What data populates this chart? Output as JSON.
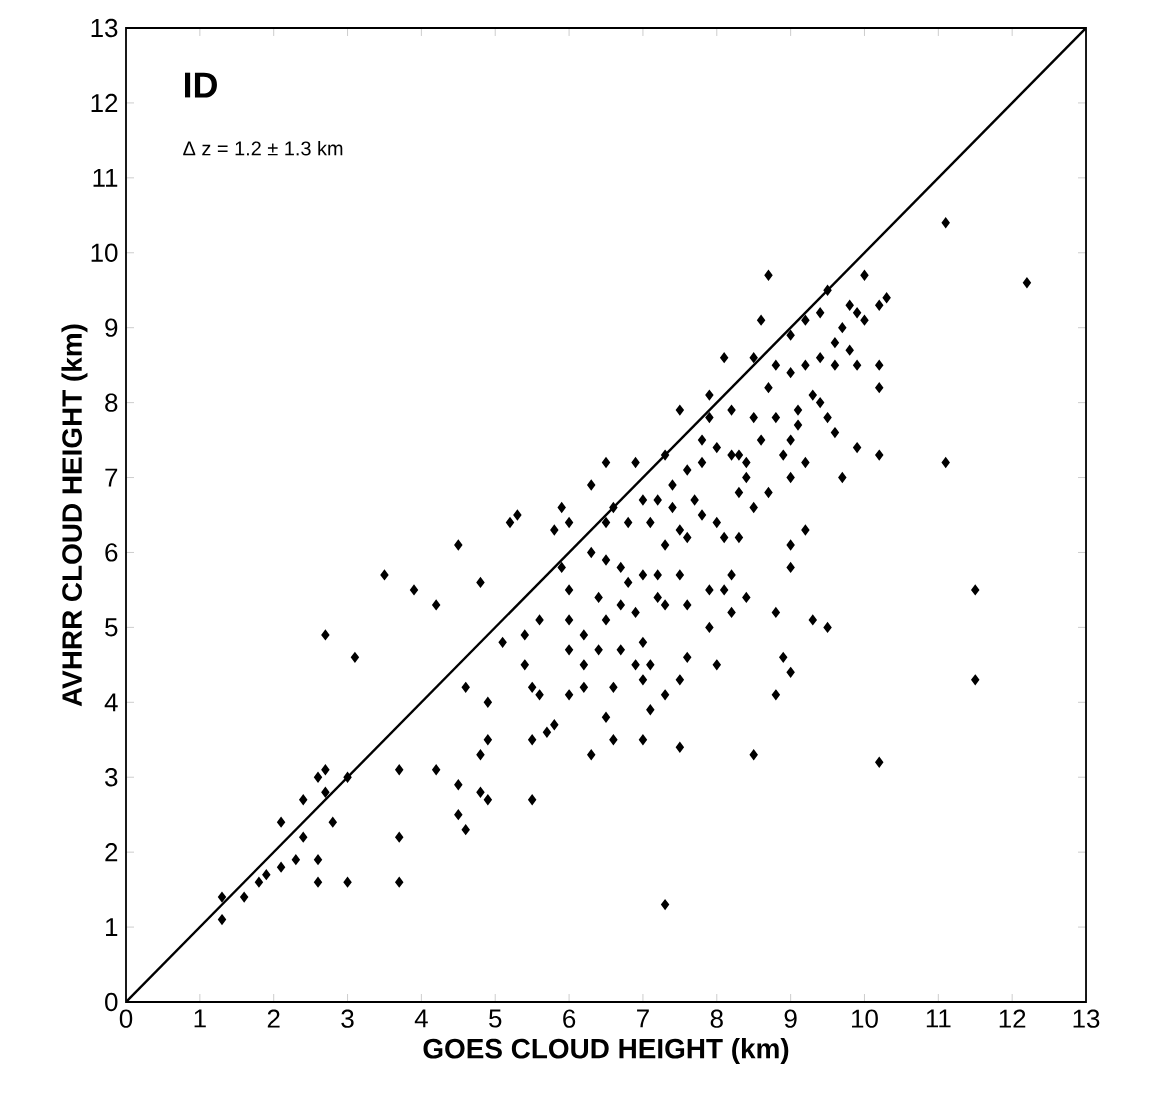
{
  "chart_data": {
    "type": "scatter",
    "xlabel": "GOES CLOUD HEIGHT (km)",
    "ylabel": "AVHRR CLOUD HEIGHT (km)",
    "annotations": [
      "ID",
      "Δ  z = 1.2 ± 1.3 km"
    ],
    "xlim": [
      0,
      13
    ],
    "ylim": [
      0,
      13
    ],
    "xticks": [
      0,
      1,
      2,
      3,
      4,
      5,
      6,
      7,
      8,
      9,
      10,
      11,
      12,
      13
    ],
    "yticks": [
      0,
      1,
      2,
      3,
      4,
      5,
      6,
      7,
      8,
      9,
      10,
      11,
      12,
      13
    ],
    "series": [
      {
        "marker": "diamond",
        "color": "#000000",
        "x": [
          1.3,
          1.3,
          1.6,
          1.8,
          1.9,
          2.1,
          2.1,
          2.3,
          2.4,
          2.4,
          2.6,
          2.6,
          2.6,
          2.7,
          2.7,
          2.7,
          2.8,
          3.0,
          3.0,
          3.1,
          3.5,
          3.7,
          3.7,
          3.7,
          3.9,
          4.2,
          4.2,
          4.5,
          4.5,
          4.5,
          4.6,
          4.6,
          4.8,
          4.8,
          4.8,
          4.9,
          4.9,
          4.9,
          5.1,
          5.2,
          5.3,
          5.4,
          5.4,
          5.5,
          5.5,
          5.5,
          5.6,
          5.6,
          5.7,
          5.8,
          5.8,
          5.9,
          5.9,
          6.0,
          6.0,
          6.0,
          6.0,
          6.0,
          6.2,
          6.2,
          6.2,
          6.3,
          6.3,
          6.3,
          6.4,
          6.4,
          6.5,
          6.5,
          6.5,
          6.5,
          6.5,
          6.6,
          6.6,
          6.6,
          6.7,
          6.7,
          6.7,
          6.8,
          6.8,
          6.9,
          6.9,
          6.9,
          7.0,
          7.0,
          7.0,
          7.0,
          7.0,
          7.1,
          7.1,
          7.1,
          7.2,
          7.2,
          7.2,
          7.3,
          7.3,
          7.3,
          7.3,
          7.3,
          7.4,
          7.4,
          7.5,
          7.5,
          7.5,
          7.5,
          7.5,
          7.6,
          7.6,
          7.6,
          7.6,
          7.7,
          7.8,
          7.8,
          7.8,
          7.9,
          7.9,
          7.9,
          7.9,
          8.0,
          8.0,
          8.0,
          8.1,
          8.1,
          8.1,
          8.2,
          8.2,
          8.2,
          8.2,
          8.3,
          8.3,
          8.3,
          8.4,
          8.4,
          8.4,
          8.5,
          8.5,
          8.5,
          8.5,
          8.6,
          8.6,
          8.7,
          8.7,
          8.7,
          8.8,
          8.8,
          8.8,
          8.8,
          8.9,
          8.9,
          9.0,
          9.0,
          9.0,
          9.0,
          9.0,
          9.0,
          9.0,
          9.1,
          9.1,
          9.2,
          9.2,
          9.2,
          9.2,
          9.3,
          9.3,
          9.4,
          9.4,
          9.4,
          9.5,
          9.5,
          9.5,
          9.6,
          9.6,
          9.6,
          9.7,
          9.7,
          9.8,
          9.8,
          9.9,
          9.9,
          9.9,
          10.0,
          10.0,
          10.2,
          10.2,
          10.2,
          10.2,
          10.2,
          10.3,
          11.1,
          11.1,
          11.5,
          11.5,
          12.2
        ],
        "values": [
          1.1,
          1.4,
          1.4,
          1.6,
          1.7,
          1.8,
          2.4,
          1.9,
          2.2,
          2.7,
          1.6,
          1.9,
          3.0,
          3.1,
          2.8,
          4.9,
          2.4,
          1.6,
          3.0,
          4.6,
          5.7,
          1.6,
          2.2,
          3.1,
          5.5,
          3.1,
          5.3,
          6.1,
          2.9,
          2.5,
          2.3,
          4.2,
          5.6,
          3.3,
          2.8,
          2.7,
          4.0,
          3.5,
          4.8,
          6.4,
          6.5,
          4.5,
          4.9,
          4.2,
          3.5,
          2.7,
          5.1,
          4.1,
          3.6,
          3.7,
          6.3,
          6.6,
          5.8,
          6.4,
          5.5,
          5.1,
          4.7,
          4.1,
          4.9,
          4.5,
          4.2,
          6.9,
          6.0,
          3.3,
          5.4,
          4.7,
          7.2,
          6.4,
          5.9,
          5.1,
          3.8,
          6.6,
          4.2,
          3.5,
          5.8,
          5.3,
          4.7,
          6.4,
          5.6,
          7.2,
          5.2,
          4.5,
          6.7,
          5.7,
          4.8,
          4.3,
          3.5,
          6.4,
          4.5,
          3.9,
          6.7,
          5.4,
          5.7,
          7.3,
          6.1,
          5.3,
          4.1,
          1.3,
          6.6,
          6.9,
          7.9,
          6.3,
          5.7,
          4.3,
          3.4,
          7.1,
          6.2,
          5.3,
          4.6,
          6.7,
          7.5,
          7.2,
          6.5,
          8.1,
          7.8,
          5.5,
          5.0,
          7.4,
          6.4,
          4.5,
          8.6,
          6.2,
          5.5,
          7.9,
          7.3,
          5.7,
          5.2,
          7.3,
          6.8,
          6.2,
          7.0,
          5.4,
          7.2,
          8.6,
          7.8,
          6.6,
          3.3,
          9.1,
          7.5,
          9.7,
          6.8,
          8.2,
          7.8,
          8.5,
          5.2,
          4.1,
          7.3,
          4.6,
          8.9,
          8.4,
          7.5,
          7.0,
          6.1,
          5.8,
          4.4,
          7.9,
          7.7,
          9.1,
          8.5,
          7.2,
          6.3,
          8.1,
          5.1,
          9.2,
          8.6,
          8.0,
          9.5,
          7.8,
          5.0,
          8.8,
          7.6,
          8.5,
          9.0,
          7.0,
          9.3,
          8.7,
          8.5,
          7.4,
          9.2,
          9.7,
          9.1,
          9.3,
          8.5,
          8.2,
          7.3,
          3.2,
          9.4,
          10.4,
          7.2,
          5.5,
          4.3,
          9.6
        ]
      },
      {
        "type": "line",
        "color": "#000000",
        "x": [
          0,
          13
        ],
        "values": [
          0,
          13
        ]
      }
    ]
  }
}
